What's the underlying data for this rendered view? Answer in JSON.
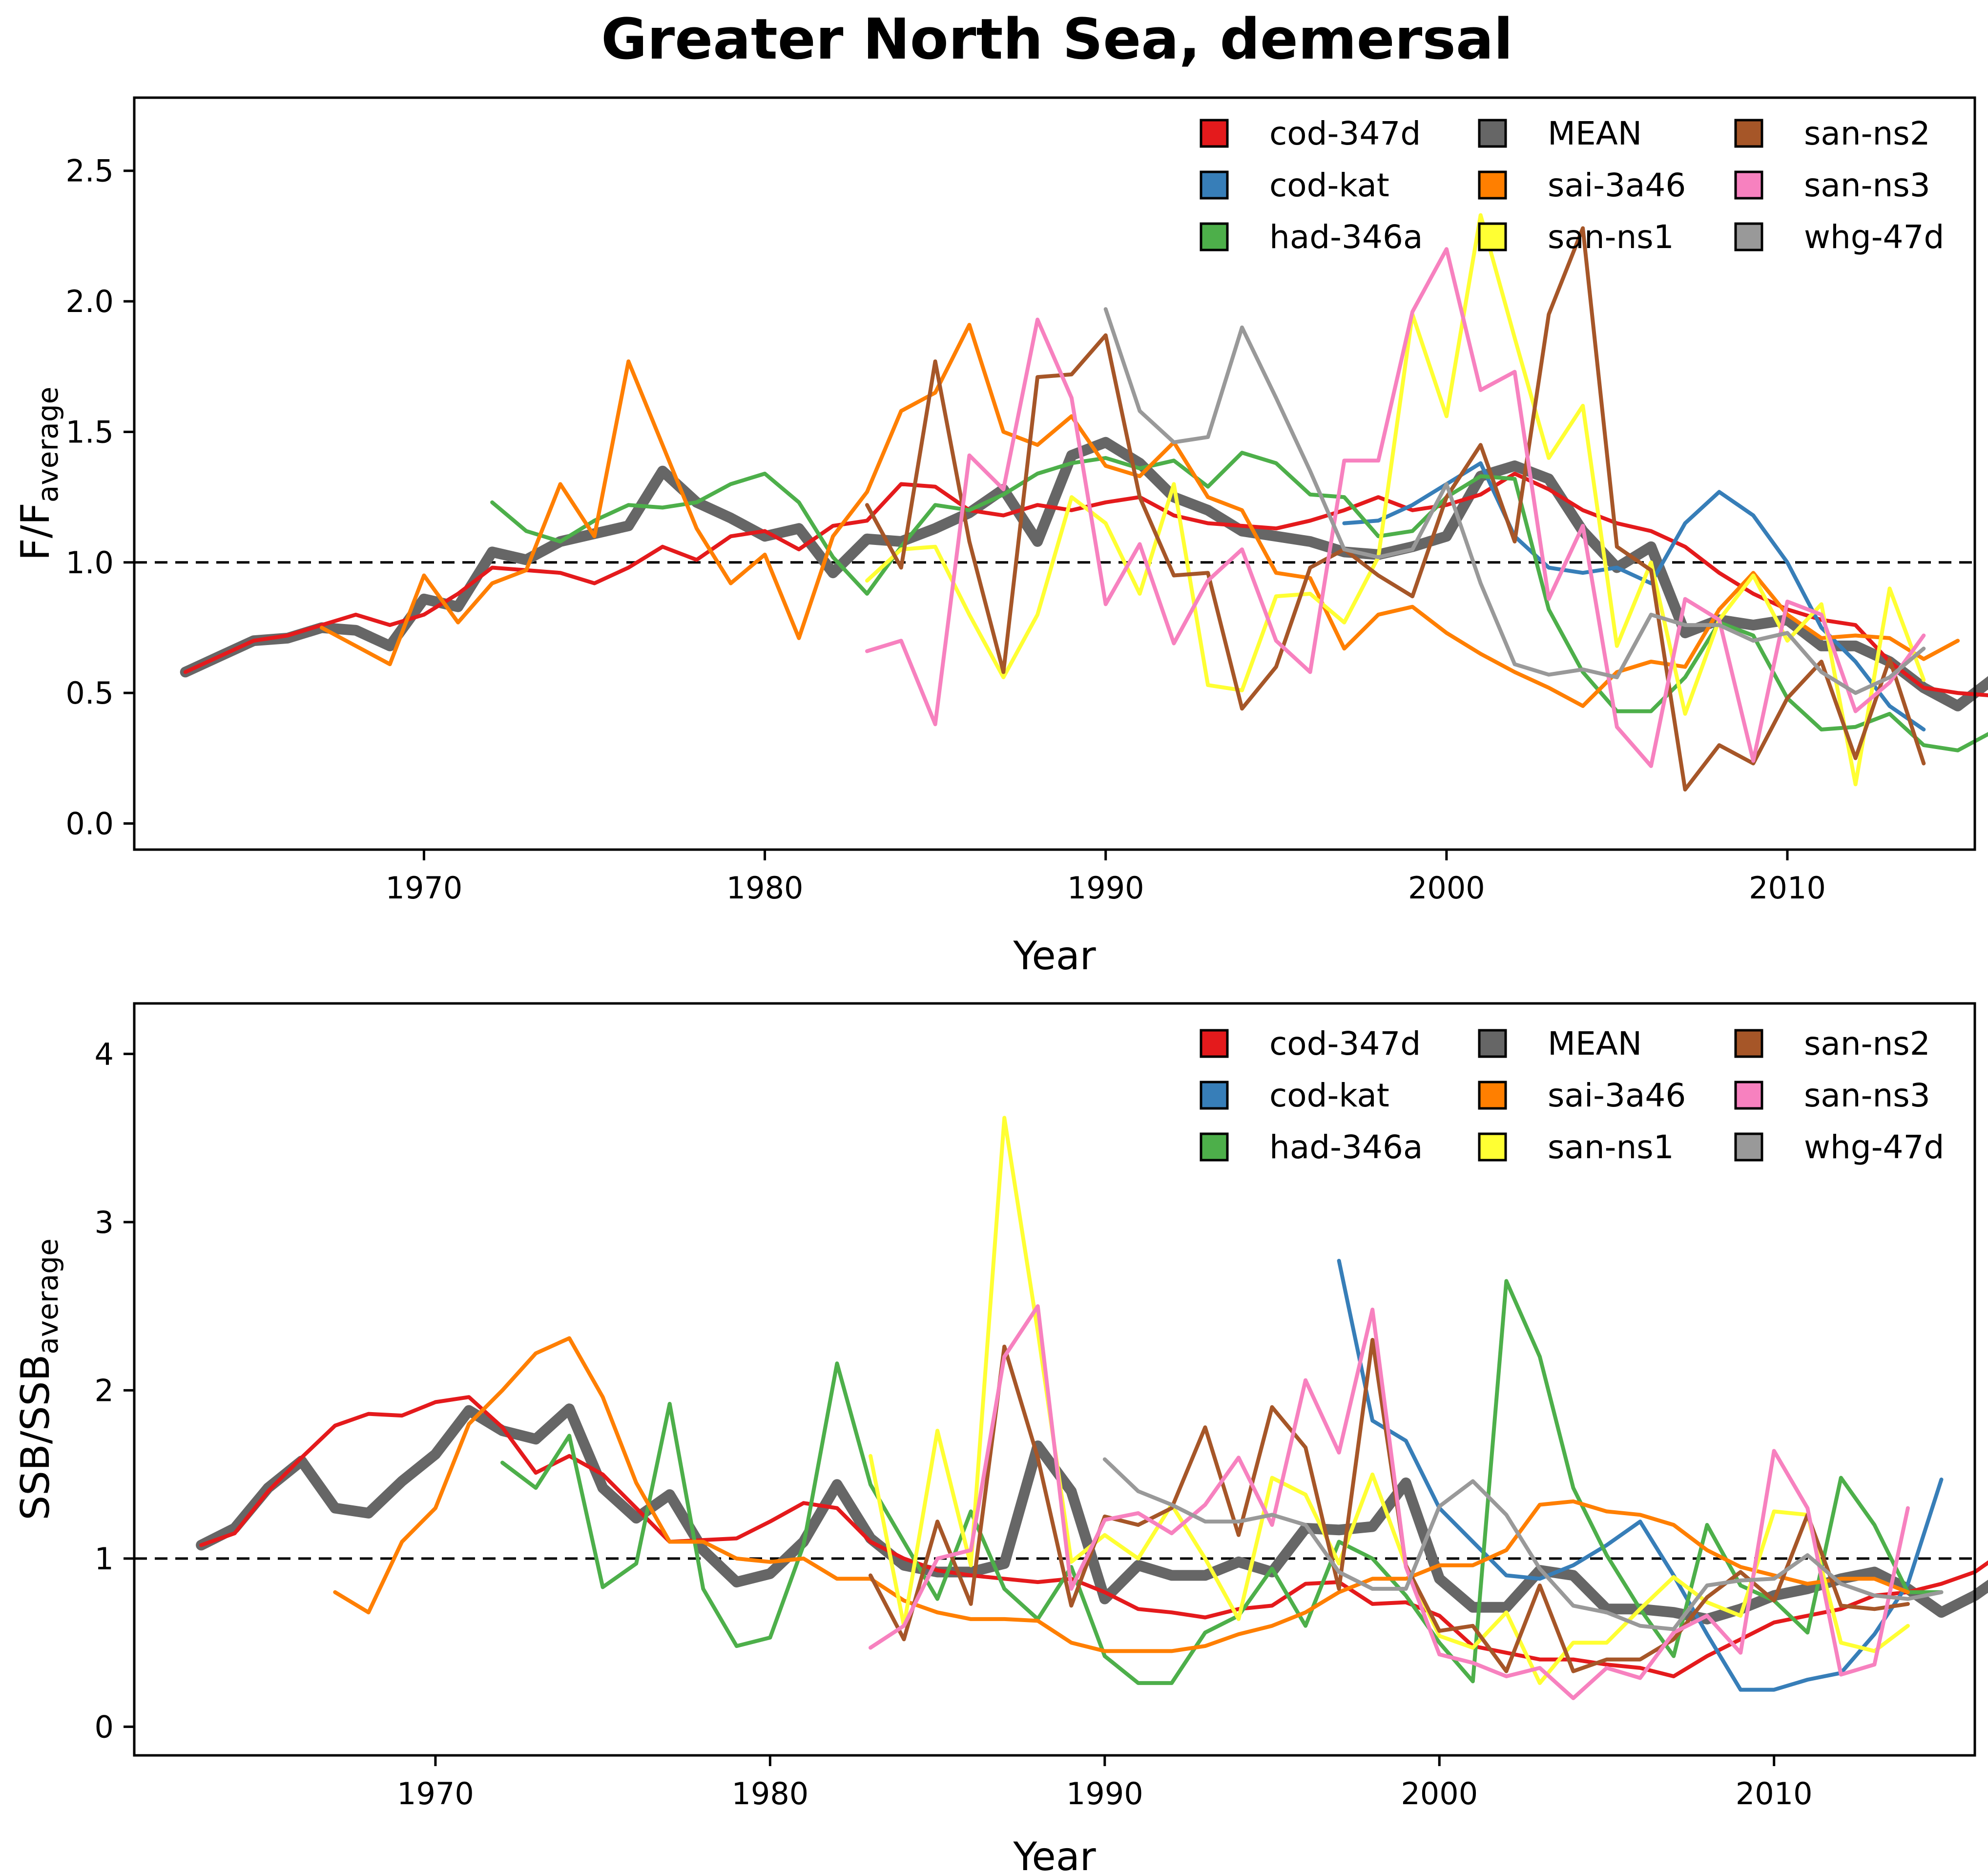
{
  "figure": {
    "title": "Greater North Sea, demersal"
  },
  "chart_data": [
    {
      "type": "line",
      "id": "F",
      "ylabel": "F/F",
      "ylabel_sub": "average",
      "xlabel": "Year",
      "xlim": [
        1961.5,
        2015.5
      ],
      "ylim": [
        -0.1,
        2.78
      ],
      "xticks": [
        1970,
        1980,
        1990,
        2000,
        2010
      ],
      "yticks": [
        0.0,
        0.5,
        1.0,
        1.5,
        2.0,
        2.5
      ],
      "ytick_labels": [
        "0.0",
        "0.5",
        "1.0",
        "1.5",
        "2.0",
        "2.5"
      ],
      "reference_line": 1.0,
      "legend_position": "top-right",
      "legend_order": [
        "cod-347d",
        "cod-kat",
        "had-346a",
        "MEAN",
        "sai-3a46",
        "san-ns1",
        "san-ns2",
        "san-ns3",
        "whg-47d"
      ],
      "series": [
        {
          "name": "cod-347d",
          "color": "#e41a1c",
          "x0": 1963,
          "values": [
            0.58,
            0.64,
            0.7,
            0.72,
            0.76,
            0.8,
            0.76,
            0.8,
            0.88,
            0.98,
            0.97,
            0.96,
            0.92,
            0.98,
            1.06,
            1.01,
            1.1,
            1.12,
            1.05,
            1.14,
            1.16,
            1.3,
            1.29,
            1.2,
            1.18,
            1.22,
            1.2,
            1.23,
            1.25,
            1.18,
            1.15,
            1.14,
            1.13,
            1.16,
            1.2,
            1.25,
            1.2,
            1.22,
            1.26,
            1.34,
            1.28,
            1.2,
            1.15,
            1.12,
            1.06,
            0.96,
            0.88,
            0.82,
            0.78,
            0.76,
            0.62,
            0.52,
            0.5,
            0.49,
            0.48
          ]
        },
        {
          "name": "cod-kat",
          "color": "#377eb8",
          "x0": 1997,
          "values": [
            1.15,
            1.16,
            1.22,
            1.3,
            1.38,
            1.1,
            0.98,
            0.96,
            0.98,
            0.92,
            1.15,
            1.27,
            1.18,
            1.0,
            0.75,
            0.62,
            0.45,
            0.36
          ]
        },
        {
          "name": "had-346a",
          "color": "#4daf4a",
          "x0": 1972,
          "values": [
            1.23,
            1.12,
            1.08,
            1.16,
            1.22,
            1.21,
            1.23,
            1.3,
            1.34,
            1.23,
            1.02,
            0.88,
            1.06,
            1.22,
            1.2,
            1.26,
            1.34,
            1.38,
            1.4,
            1.36,
            1.39,
            1.29,
            1.42,
            1.38,
            1.26,
            1.25,
            1.1,
            1.12,
            1.25,
            1.33,
            1.32,
            0.82,
            0.58,
            0.43,
            0.43,
            0.56,
            0.77,
            0.72,
            0.48,
            0.36,
            0.37,
            0.42,
            0.3,
            0.28,
            0.35
          ]
        },
        {
          "name": "sai-3a46",
          "color": "#ff7f00",
          "x0": 1967,
          "values": [
            0.75,
            0.68,
            0.61,
            0.95,
            0.77,
            0.92,
            0.97,
            1.3,
            1.1,
            1.77,
            1.45,
            1.13,
            0.92,
            1.03,
            0.71,
            1.1,
            1.27,
            1.58,
            1.65,
            1.91,
            1.5,
            1.45,
            1.56,
            1.37,
            1.33,
            1.46,
            1.25,
            1.2,
            0.96,
            0.94,
            0.67,
            0.8,
            0.83,
            0.73,
            0.65,
            0.58,
            0.52,
            0.45,
            0.58,
            0.62,
            0.6,
            0.82,
            0.96,
            0.8,
            0.71,
            0.72,
            0.71,
            0.63,
            0.7
          ]
        },
        {
          "name": "san-ns1",
          "color": "#ffff33",
          "x0": 1983,
          "values": [
            0.93,
            1.05,
            1.06,
            0.8,
            0.56,
            0.8,
            1.25,
            1.15,
            0.88,
            1.3,
            0.53,
            0.51,
            0.87,
            0.88,
            0.77,
            1.02,
            1.95,
            1.56,
            2.33,
            1.86,
            1.4,
            1.6,
            0.68,
            1.0,
            0.42,
            0.78,
            0.95,
            0.7,
            0.84,
            0.15,
            0.9,
            0.55
          ]
        },
        {
          "name": "san-ns2",
          "color": "#a65628",
          "x0": 1983,
          "values": [
            1.22,
            0.98,
            1.77,
            1.08,
            0.58,
            1.71,
            1.72,
            1.87,
            1.25,
            0.95,
            0.96,
            0.44,
            0.6,
            0.98,
            1.05,
            0.95,
            0.87,
            1.25,
            1.45,
            1.08,
            1.95,
            2.28,
            1.06,
            0.97,
            0.13,
            0.3,
            0.23,
            0.48,
            0.62,
            0.25,
            0.63,
            0.23
          ]
        },
        {
          "name": "san-ns3",
          "color": "#f781bf",
          "x0": 1983,
          "values": [
            0.66,
            0.7,
            0.38,
            1.41,
            1.28,
            1.93,
            1.63,
            0.84,
            1.07,
            0.69,
            0.93,
            1.05,
            0.7,
            0.58,
            1.39,
            1.39,
            1.96,
            2.2,
            1.66,
            1.73,
            0.86,
            1.14,
            0.37,
            0.22,
            0.86,
            0.78,
            0.24,
            0.85,
            0.8,
            0.43,
            0.54,
            0.72
          ]
        },
        {
          "name": "whg-47d",
          "color": "#999999",
          "x0": 1990,
          "values": [
            1.97,
            1.58,
            1.46,
            1.48,
            1.9,
            1.63,
            1.35,
            1.05,
            1.02,
            1.05,
            1.3,
            0.92,
            0.61,
            0.57,
            0.59,
            0.56,
            0.8,
            0.76,
            0.76,
            0.7,
            0.73,
            0.58,
            0.5,
            0.56,
            0.67
          ]
        },
        {
          "name": "MEAN",
          "color": "#666666",
          "x0": 1963,
          "values": [
            0.58,
            0.64,
            0.7,
            0.71,
            0.75,
            0.74,
            0.68,
            0.86,
            0.83,
            1.04,
            1.01,
            1.08,
            1.11,
            1.14,
            1.35,
            1.23,
            1.17,
            1.1,
            1.13,
            0.96,
            1.09,
            1.08,
            1.13,
            1.19,
            1.28,
            1.08,
            1.41,
            1.46,
            1.38,
            1.25,
            1.2,
            1.12,
            1.1,
            1.08,
            1.04,
            1.03,
            1.06,
            1.1,
            1.33,
            1.37,
            1.32,
            1.12,
            0.98,
            1.06,
            0.73,
            0.78,
            0.76,
            0.78,
            0.68,
            0.68,
            0.62,
            0.52,
            0.45,
            0.55,
            0.52
          ]
        }
      ]
    },
    {
      "type": "line",
      "id": "SSB",
      "ylabel": "SSB/SSB",
      "ylabel_sub": "average",
      "xlabel": "Year",
      "xlim": [
        1961.0,
        2016.0
      ],
      "ylim": [
        -0.17,
        4.3
      ],
      "xticks": [
        1970,
        1980,
        1990,
        2000,
        2010
      ],
      "yticks": [
        0,
        1,
        2,
        3,
        4
      ],
      "ytick_labels": [
        "0",
        "1",
        "2",
        "3",
        "4"
      ],
      "reference_line": 1.0,
      "legend_position": "top-right",
      "legend_order": [
        "cod-347d",
        "cod-kat",
        "had-346a",
        "MEAN",
        "sai-3a46",
        "san-ns1",
        "san-ns2",
        "san-ns3",
        "whg-47d"
      ],
      "series": [
        {
          "name": "cod-347d",
          "color": "#e41a1c",
          "x0": 1963,
          "values": [
            1.08,
            1.15,
            1.4,
            1.6,
            1.79,
            1.86,
            1.85,
            1.93,
            1.96,
            1.78,
            1.51,
            1.61,
            1.5,
            1.3,
            1.1,
            1.11,
            1.12,
            1.22,
            1.33,
            1.3,
            1.1,
            1.0,
            0.93,
            0.9,
            0.88,
            0.86,
            0.88,
            0.8,
            0.7,
            0.68,
            0.65,
            0.7,
            0.72,
            0.85,
            0.86,
            0.73,
            0.74,
            0.66,
            0.48,
            0.44,
            0.4,
            0.4,
            0.37,
            0.35,
            0.3,
            0.42,
            0.52,
            0.62,
            0.66,
            0.7,
            0.78,
            0.8,
            0.85,
            0.92,
            1.06
          ]
        },
        {
          "name": "cod-kat",
          "color": "#377eb8",
          "x0": 1997,
          "values": [
            2.77,
            1.82,
            1.7,
            1.3,
            1.1,
            0.9,
            0.88,
            0.96,
            1.08,
            1.22,
            0.9,
            0.55,
            0.22,
            0.22,
            0.28,
            0.32,
            0.55,
            0.85,
            1.47
          ]
        },
        {
          "name": "had-346a",
          "color": "#4daf4a",
          "x0": 1972,
          "values": [
            1.57,
            1.42,
            1.73,
            0.83,
            0.97,
            1.92,
            0.82,
            0.48,
            0.53,
            1.08,
            2.16,
            1.44,
            1.1,
            0.76,
            1.28,
            0.82,
            0.64,
            0.95,
            0.42,
            0.26,
            0.26,
            0.56,
            0.66,
            0.94,
            0.6,
            1.1,
            1.0,
            0.78,
            0.5,
            0.27,
            2.65,
            2.2,
            1.42,
            1.02,
            0.7,
            0.42,
            1.2,
            0.84,
            0.75,
            0.56,
            1.48,
            1.2,
            0.8,
            0.8
          ]
        },
        {
          "name": "sai-3a46",
          "color": "#ff7f00",
          "x0": 1967,
          "values": [
            0.8,
            0.68,
            1.1,
            1.3,
            1.8,
            2.0,
            2.22,
            2.31,
            1.96,
            1.45,
            1.1,
            1.1,
            1.0,
            0.98,
            1.0,
            0.88,
            0.88,
            0.75,
            0.68,
            0.64,
            0.64,
            0.63,
            0.5,
            0.45,
            0.45,
            0.45,
            0.48,
            0.55,
            0.6,
            0.68,
            0.8,
            0.88,
            0.88,
            0.96,
            0.96,
            1.05,
            1.32,
            1.34,
            1.28,
            1.26,
            1.2,
            1.05,
            0.95,
            0.9,
            0.85,
            0.88,
            0.88,
            0.8
          ]
        },
        {
          "name": "san-ns1",
          "color": "#ffff33",
          "x0": 1983,
          "values": [
            1.61,
            0.6,
            1.76,
            0.96,
            3.62,
            2.35,
            0.98,
            1.14,
            1.0,
            1.32,
            1.0,
            0.64,
            1.48,
            1.38,
            0.97,
            1.5,
            0.96,
            0.54,
            0.47,
            0.68,
            0.26,
            0.5,
            0.5,
            0.7,
            0.89,
            0.74,
            0.66,
            1.28,
            1.26,
            0.5,
            0.45,
            0.6
          ]
        },
        {
          "name": "san-ns2",
          "color": "#a65628",
          "x0": 1983,
          "values": [
            0.9,
            0.52,
            1.22,
            0.73,
            2.26,
            1.6,
            0.72,
            1.25,
            1.2,
            1.3,
            1.78,
            1.14,
            1.9,
            1.66,
            0.82,
            2.3,
            0.96,
            0.57,
            0.6,
            0.33,
            0.84,
            0.33,
            0.4,
            0.4,
            0.52,
            0.77,
            0.92,
            0.75,
            1.26,
            0.72,
            0.7,
            0.73
          ]
        },
        {
          "name": "san-ns3",
          "color": "#f781bf",
          "x0": 1983,
          "values": [
            0.47,
            0.6,
            1.0,
            1.05,
            2.2,
            2.5,
            0.82,
            1.23,
            1.27,
            1.15,
            1.32,
            1.6,
            1.2,
            2.06,
            1.63,
            2.48,
            0.95,
            0.43,
            0.38,
            0.3,
            0.35,
            0.17,
            0.35,
            0.29,
            0.56,
            0.66,
            0.44,
            1.64,
            1.3,
            0.31,
            0.37,
            1.3
          ]
        },
        {
          "name": "whg-47d",
          "color": "#999999",
          "x0": 1990,
          "values": [
            1.59,
            1.4,
            1.32,
            1.22,
            1.22,
            1.26,
            1.2,
            0.92,
            0.82,
            0.82,
            1.31,
            1.46,
            1.26,
            0.94,
            0.72,
            0.68,
            0.6,
            0.58,
            0.84,
            0.87,
            0.88,
            1.02,
            0.85,
            0.78,
            0.76,
            0.8
          ]
        },
        {
          "name": "MEAN",
          "color": "#666666",
          "x0": 1963,
          "values": [
            1.08,
            1.18,
            1.42,
            1.58,
            1.3,
            1.27,
            1.46,
            1.62,
            1.88,
            1.76,
            1.71,
            1.89,
            1.42,
            1.24,
            1.38,
            1.05,
            0.86,
            0.91,
            1.1,
            1.44,
            1.12,
            0.96,
            0.92,
            0.92,
            0.97,
            1.67,
            1.4,
            0.76,
            0.96,
            0.9,
            0.9,
            0.98,
            0.92,
            1.18,
            1.17,
            1.19,
            1.45,
            0.88,
            0.71,
            0.71,
            0.93,
            0.9,
            0.7,
            0.7,
            0.68,
            0.64,
            0.7,
            0.78,
            0.82,
            0.88,
            0.92,
            0.82,
            0.68,
            0.78,
            0.92
          ]
        }
      ]
    }
  ]
}
